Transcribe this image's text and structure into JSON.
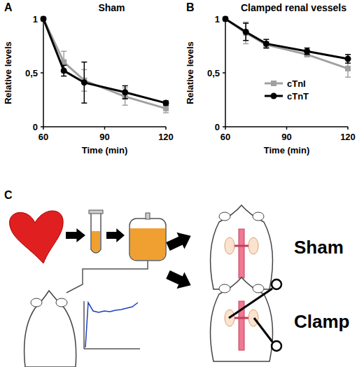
{
  "chart_data": [
    {
      "type": "line",
      "panel_label": "A",
      "title": "Sham",
      "x_label": "Time (min)",
      "y_label": "Relative levels",
      "x": [
        60,
        70,
        80,
        100,
        120
      ],
      "series": [
        {
          "name": "cTnI",
          "color": "#a0a0a0",
          "marker": "square",
          "values": [
            1,
            0.6,
            0.43,
            0.28,
            0.17
          ],
          "errors": [
            0,
            0.1,
            0.1,
            0.08,
            0.04
          ]
        },
        {
          "name": "cTnT",
          "color": "#000000",
          "marker": "circle",
          "values": [
            1,
            0.52,
            0.41,
            0.32,
            0.22
          ],
          "errors": [
            0,
            0.05,
            0.19,
            0.06,
            0.02
          ]
        }
      ],
      "xlim": [
        60,
        120
      ],
      "xticks": [
        60,
        90,
        120
      ],
      "ylim": [
        0,
        1
      ],
      "yticks": [
        0,
        {
          "value": 0.5,
          "label": "0,5"
        },
        1
      ]
    },
    {
      "type": "line",
      "panel_label": "B",
      "title": "Clamped renal vessels",
      "x_label": "Time (min)",
      "y_label": "Relative levels",
      "x": [
        60,
        70,
        80,
        100,
        120
      ],
      "series": [
        {
          "name": "cTnI",
          "color": "#a0a0a0",
          "marker": "square",
          "values": [
            1,
            0.87,
            0.76,
            0.67,
            0.54
          ],
          "errors": [
            0,
            0.1,
            0.03,
            0.02,
            0.08
          ]
        },
        {
          "name": "cTnT",
          "color": "#000000",
          "marker": "circle",
          "values": [
            1,
            0.88,
            0.77,
            0.7,
            0.63
          ],
          "errors": [
            0,
            0.08,
            0.04,
            0.03,
            0.04
          ]
        }
      ],
      "xlim": [
        60,
        120
      ],
      "xticks": [
        60,
        90,
        120
      ],
      "ylim": [
        0,
        1
      ],
      "yticks": [
        0,
        {
          "value": 0.5,
          "label": "0,5"
        },
        1
      ],
      "legend": "center"
    }
  ],
  "diagram": {
    "panel_label": "C",
    "labels": [
      "Sham",
      "Clamp"
    ]
  }
}
